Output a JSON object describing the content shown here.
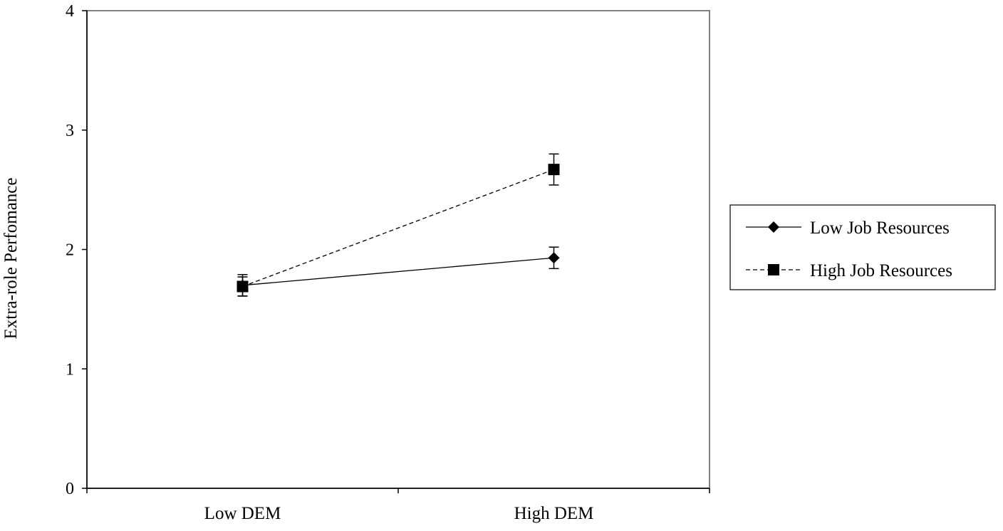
{
  "chart_data": {
    "type": "line",
    "categories": [
      "Low DEM",
      "High DEM"
    ],
    "ylabel": "Extra-role Perfomance",
    "xlabel": "",
    "ylim": [
      0,
      4
    ],
    "yticks": [
      0,
      1,
      2,
      3,
      4
    ],
    "grid": false,
    "legend_position": "right",
    "series": [
      {
        "name": "Low Job Resources",
        "values": [
          1.7,
          1.93
        ],
        "error": [
          0.09,
          0.09
        ],
        "marker": "diamond",
        "line_style": "solid",
        "color": "#000000"
      },
      {
        "name": "High Job Resources",
        "values": [
          1.69,
          2.67
        ],
        "error": [
          0.08,
          0.13
        ],
        "marker": "square",
        "line_style": "dashed",
        "color": "#000000"
      }
    ]
  }
}
